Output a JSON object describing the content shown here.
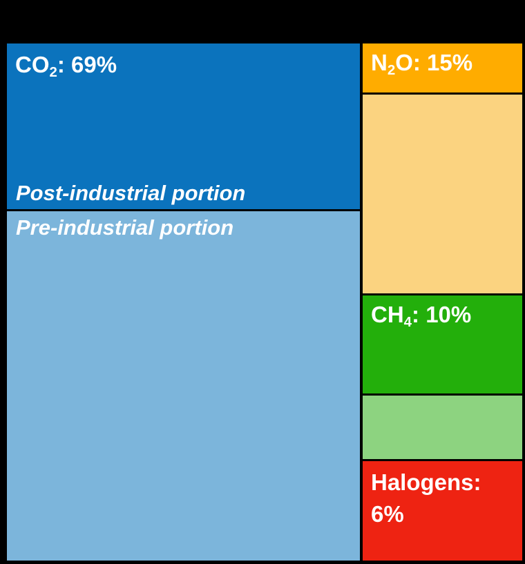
{
  "palette": {
    "background": "#000000",
    "divider": "#17375D",
    "text": "#FFFFFF",
    "co2_post": "#0B73BD",
    "co2_pre": "#7CB5DB",
    "n2o_post": "#FFAC00",
    "n2o_pre": "#FBD380",
    "ch4_post": "#23AF0B",
    "ch4_pre": "#8DD380",
    "halogens_post": "#EE2312"
  },
  "labels": {
    "co2": {
      "prefix": "CO",
      "sub": "2",
      "suffix": ": 69%"
    },
    "n2o": {
      "prefix": "N",
      "sub": "2",
      "suffix": "O: 15%"
    },
    "ch4": {
      "prefix": "CH",
      "sub": "4",
      "suffix": ": 10%"
    },
    "halogens": {
      "line1": "Halogens:",
      "line2": "6%"
    },
    "post_industrial": "Post-industrial portion",
    "pre_industrial": "Pre-industrial portion"
  },
  "chart_data": {
    "type": "treemap",
    "legend_position": "in-block annotations",
    "annotations": [
      "Post-industrial portion",
      "Pre-industrial portion"
    ],
    "categories": [
      "CO2",
      "N2O",
      "CH4",
      "Halogens"
    ],
    "series": [
      {
        "name": "CO2",
        "label": "CO₂: 69%",
        "total_pct": 69,
        "segments": [
          {
            "name": "Post-industrial portion",
            "pct_est": 22,
            "color": "#0B73BD"
          },
          {
            "name": "Pre-industrial portion",
            "pct_est": 47,
            "color": "#7CB5DB"
          }
        ]
      },
      {
        "name": "N2O",
        "label": "N₂O: 15%",
        "total_pct": 15,
        "segments": [
          {
            "name": "Post-industrial portion",
            "pct_est": 3,
            "color": "#FFAC00"
          },
          {
            "name": "Pre-industrial portion",
            "pct_est": 12,
            "color": "#FBD380"
          }
        ]
      },
      {
        "name": "CH4",
        "label": "CH₄: 10%",
        "total_pct": 10,
        "segments": [
          {
            "name": "Post-industrial portion",
            "pct_est": 6,
            "color": "#23AF0B"
          },
          {
            "name": "Pre-industrial portion",
            "pct_est": 4,
            "color": "#8DD380"
          }
        ]
      },
      {
        "name": "Halogens",
        "label": "Halogens: 6%",
        "total_pct": 6,
        "segments": [
          {
            "name": "Post-industrial portion",
            "pct_est": 6,
            "color": "#EE2312"
          }
        ]
      }
    ]
  }
}
